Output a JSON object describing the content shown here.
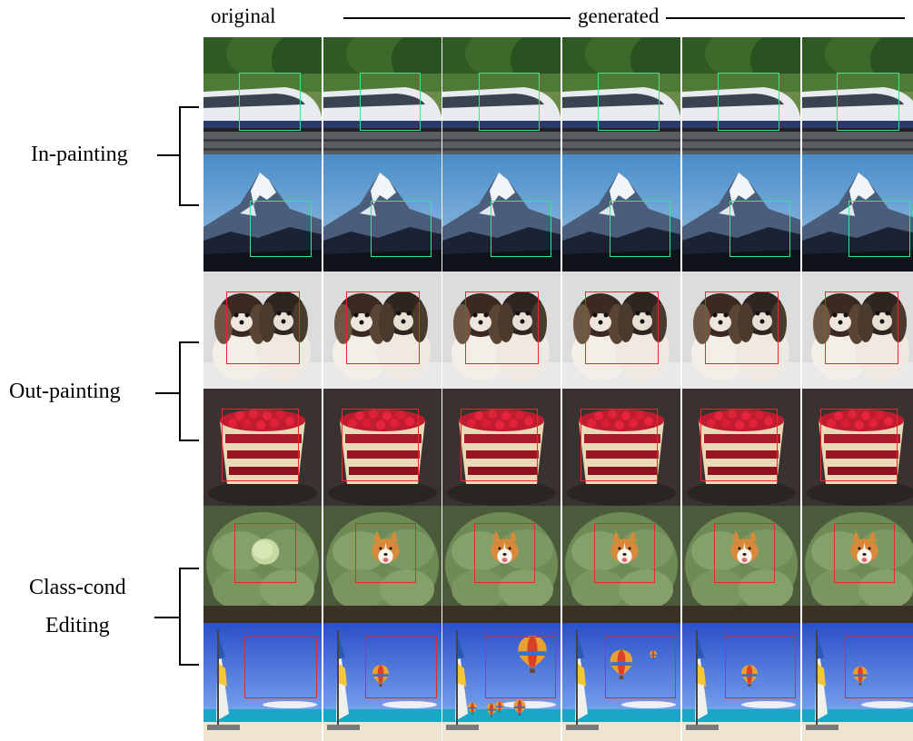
{
  "header": {
    "original_label": "original",
    "generated_label": "generated"
  },
  "groups": [
    {
      "label_lines": [
        "In-painting"
      ]
    },
    {
      "label_lines": [
        "Out-painting"
      ]
    },
    {
      "label_lines": [
        "Class-cond",
        "Editing"
      ]
    }
  ],
  "rows": [
    {
      "subject": "bullet-train",
      "mask_color": "#3fe28a"
    },
    {
      "subject": "mountain",
      "mask_color": "#3fe28a"
    },
    {
      "subject": "two-shih-tzu-dogs",
      "mask_color": "#e5292b"
    },
    {
      "subject": "raspberry-trifle",
      "mask_color": "#e5292b"
    },
    {
      "subject": "cabbage-to-corgi",
      "mask_color": "#e5292b"
    },
    {
      "subject": "beach-hot-air-balloon",
      "mask_color": "#e5292b"
    }
  ]
}
